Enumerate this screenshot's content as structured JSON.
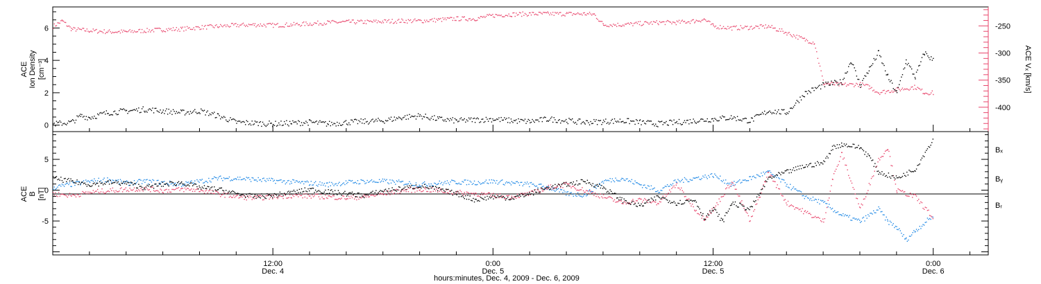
{
  "colors": {
    "black": "#000000",
    "pink": "#e8456b",
    "blue": "#1e88e5"
  },
  "xaxis": {
    "title": "hours:minutes, Dec.  4, 2009 - Dec.  6, 2009",
    "range_hours": [
      0,
      51
    ],
    "ticks": [
      {
        "hour": 12,
        "label": "12:00",
        "sublabel": "Dec. 4"
      },
      {
        "hour": 24,
        "label": "0:00",
        "sublabel": "Dec. 5"
      },
      {
        "hour": 36,
        "label": "12:00",
        "sublabel": "Dec. 5"
      },
      {
        "hour": 48,
        "label": "0:00",
        "sublabel": "Dec. 6"
      }
    ]
  },
  "chart_data": [
    {
      "type": "scatter",
      "panel": "top",
      "ylabel_left": [
        "ACE",
        "Ion Density",
        "[cm⁻³]"
      ],
      "ylabel_right": "ACE Vₓ [km/s]",
      "ylim_left": [
        -0.4,
        7.3
      ],
      "ylim_right": [
        -445,
        -215
      ],
      "left_ticks": [
        0,
        2,
        4,
        6
      ],
      "right_ticks": [
        -250,
        -300,
        -350,
        -400
      ],
      "series": [
        {
          "axis": "left",
          "color": "black",
          "points": [
            [
              0,
              0.1
            ],
            [
              1,
              0.2
            ],
            [
              1.5,
              0.6
            ],
            [
              2,
              0.5
            ],
            [
              3,
              0.8
            ],
            [
              4,
              0.9
            ],
            [
              5,
              1.0
            ],
            [
              6,
              0.9
            ],
            [
              7,
              0.8
            ],
            [
              8,
              0.9
            ],
            [
              9,
              0.6
            ],
            [
              10,
              0.2
            ],
            [
              11,
              0.15
            ],
            [
              12,
              0.1
            ],
            [
              13,
              0.15
            ],
            [
              14,
              0.2
            ],
            [
              15,
              0.1
            ],
            [
              16,
              0.2
            ],
            [
              17,
              0.25
            ],
            [
              18,
              0.3
            ],
            [
              19,
              0.5
            ],
            [
              20,
              0.6
            ],
            [
              21,
              0.4
            ],
            [
              22,
              0.3
            ],
            [
              23,
              0.35
            ],
            [
              24,
              0.4
            ],
            [
              25,
              0.3
            ],
            [
              26,
              0.25
            ],
            [
              27,
              0.4
            ],
            [
              28,
              0.3
            ],
            [
              29,
              0.2
            ],
            [
              30,
              0.25
            ],
            [
              31,
              0.3
            ],
            [
              32,
              0.2
            ],
            [
              33,
              0.1
            ],
            [
              34,
              0.2
            ],
            [
              35,
              0.3
            ],
            [
              36,
              0.4
            ],
            [
              37,
              0.5
            ],
            [
              38,
              0.3
            ],
            [
              39,
              0.9
            ],
            [
              40,
              0.8
            ],
            [
              41,
              2.0
            ],
            [
              42,
              2.5
            ],
            [
              43,
              2.7
            ],
            [
              43.5,
              4.0
            ],
            [
              44,
              2.5
            ],
            [
              44.5,
              3.5
            ],
            [
              45,
              4.5
            ],
            [
              45.5,
              3.0
            ],
            [
              46,
              2.0
            ],
            [
              46.5,
              4.0
            ],
            [
              47,
              3.0
            ],
            [
              47.5,
              4.5
            ],
            [
              48,
              4.0
            ]
          ]
        },
        {
          "axis": "right",
          "color": "pink",
          "points": [
            [
              0,
              -250
            ],
            [
              0.5,
              -240
            ],
            [
              1,
              -255
            ],
            [
              2,
              -258
            ],
            [
              3,
              -260
            ],
            [
              4,
              -260
            ],
            [
              5,
              -258
            ],
            [
              6,
              -256
            ],
            [
              7,
              -255
            ],
            [
              8,
              -252
            ],
            [
              9,
              -250
            ],
            [
              10,
              -248
            ],
            [
              11,
              -247
            ],
            [
              12,
              -248
            ],
            [
              13,
              -247
            ],
            [
              14,
              -245
            ],
            [
              15,
              -243
            ],
            [
              16,
              -242
            ],
            [
              17,
              -242
            ],
            [
              18,
              -241
            ],
            [
              19,
              -240
            ],
            [
              20,
              -240
            ],
            [
              21,
              -238
            ],
            [
              22,
              -236
            ],
            [
              23,
              -236
            ],
            [
              24,
              -230
            ],
            [
              25,
              -228
            ],
            [
              26,
              -227
            ],
            [
              27,
              -227
            ],
            [
              28,
              -227
            ],
            [
              29,
              -227
            ],
            [
              29.5,
              -228
            ],
            [
              30,
              -247
            ],
            [
              31,
              -247
            ],
            [
              32,
              -245
            ],
            [
              33,
              -243
            ],
            [
              34,
              -243
            ],
            [
              35,
              -240
            ],
            [
              35.5,
              -237
            ],
            [
              36,
              -250
            ],
            [
              37,
              -253
            ],
            [
              38,
              -252
            ],
            [
              39,
              -250
            ],
            [
              40,
              -262
            ],
            [
              41,
              -275
            ],
            [
              41.5,
              -280
            ],
            [
              42,
              -355
            ],
            [
              43,
              -358
            ],
            [
              44,
              -357
            ],
            [
              44.5,
              -362
            ],
            [
              45,
              -372
            ],
            [
              46,
              -367
            ],
            [
              47,
              -362
            ],
            [
              47.5,
              -372
            ],
            [
              48,
              -373
            ]
          ]
        }
      ]
    },
    {
      "type": "scatter",
      "panel": "bottom",
      "ylabel_left": [
        "ACE",
        "B",
        "[nT]"
      ],
      "ylim": [
        -10.5,
        9.5
      ],
      "left_ticks": [
        5,
        0,
        -5
      ],
      "series": [
        {
          "name": "Bₓ",
          "color": "black",
          "points": [
            [
              0,
              2.0
            ],
            [
              1,
              1.5
            ],
            [
              2,
              1.0
            ],
            [
              3,
              1.3
            ],
            [
              4,
              1.2
            ],
            [
              5,
              0.5
            ],
            [
              6,
              1.0
            ],
            [
              7,
              1.3
            ],
            [
              8,
              0.5
            ],
            [
              9,
              0.2
            ],
            [
              10,
              -0.5
            ],
            [
              11,
              -1.0
            ],
            [
              12,
              -0.8
            ],
            [
              13,
              -0.3
            ],
            [
              14,
              0.2
            ],
            [
              15,
              -0.2
            ],
            [
              16,
              -0.5
            ],
            [
              17,
              -0.8
            ],
            [
              18,
              0.0
            ],
            [
              19,
              0.3
            ],
            [
              20,
              0.8
            ],
            [
              21,
              0.2
            ],
            [
              22,
              -0.5
            ],
            [
              23,
              -1.5
            ],
            [
              24,
              -1.0
            ],
            [
              25,
              -1.2
            ],
            [
              26,
              -0.5
            ],
            [
              27,
              0.5
            ],
            [
              28,
              1.0
            ],
            [
              29,
              1.5
            ],
            [
              30,
              0.5
            ],
            [
              31,
              -1.5
            ],
            [
              32,
              -2.5
            ],
            [
              33,
              -1.0
            ],
            [
              34,
              -2.0
            ],
            [
              35,
              -1.5
            ],
            [
              35.5,
              -4.5
            ],
            [
              36,
              -3.0
            ],
            [
              36.5,
              -5.0
            ],
            [
              37,
              -2.0
            ],
            [
              38,
              -3.0
            ],
            [
              39,
              2.0
            ],
            [
              40,
              3.0
            ],
            [
              41,
              4.0
            ],
            [
              42,
              4.5
            ],
            [
              42.5,
              7.0
            ],
            [
              43,
              7.5
            ],
            [
              44,
              7.0
            ],
            [
              44.5,
              5.5
            ],
            [
              45,
              3.0
            ],
            [
              46,
              2.0
            ],
            [
              47,
              3.5
            ],
            [
              48,
              8.5
            ]
          ]
        },
        {
          "name": "Bᵧ",
          "color": "blue",
          "points": [
            [
              0,
              0.5
            ],
            [
              1,
              1.0
            ],
            [
              2,
              1.5
            ],
            [
              3,
              1.8
            ],
            [
              4,
              1.2
            ],
            [
              5,
              1.5
            ],
            [
              6,
              1.3
            ],
            [
              7,
              1.0
            ],
            [
              8,
              1.5
            ],
            [
              9,
              2.0
            ],
            [
              10,
              2.0
            ],
            [
              11,
              1.8
            ],
            [
              12,
              1.6
            ],
            [
              13,
              1.4
            ],
            [
              14,
              1.2
            ],
            [
              15,
              1.0
            ],
            [
              16,
              1.3
            ],
            [
              17,
              1.5
            ],
            [
              18,
              1.5
            ],
            [
              19,
              1.3
            ],
            [
              20,
              1.0
            ],
            [
              21,
              1.2
            ],
            [
              22,
              1.4
            ],
            [
              23,
              1.3
            ],
            [
              24,
              1.5
            ],
            [
              25,
              1.2
            ],
            [
              26,
              1.0
            ],
            [
              27,
              0.5
            ],
            [
              28,
              -0.5
            ],
            [
              29,
              -0.7
            ],
            [
              30,
              1.5
            ],
            [
              31,
              2.0
            ],
            [
              32,
              1.0
            ],
            [
              33,
              0.0
            ],
            [
              34,
              1.5
            ],
            [
              35,
              2.0
            ],
            [
              36,
              2.5
            ],
            [
              37,
              1.0
            ],
            [
              38,
              2.0
            ],
            [
              39,
              3.0
            ],
            [
              40,
              1.0
            ],
            [
              41,
              -1.0
            ],
            [
              42,
              -2.0
            ],
            [
              43,
              -4.0
            ],
            [
              44,
              -5.0
            ],
            [
              45,
              -3.0
            ],
            [
              45.5,
              -5.0
            ],
            [
              46,
              -6.0
            ],
            [
              46.5,
              -8.0
            ],
            [
              47,
              -6.5
            ],
            [
              48,
              -4.0
            ]
          ]
        },
        {
          "name": "Bᵣ",
          "color": "pink",
          "points": [
            [
              0,
              -0.5
            ],
            [
              1,
              -0.8
            ],
            [
              2,
              -0.3
            ],
            [
              3,
              0.0
            ],
            [
              4,
              0.2
            ],
            [
              5,
              0.3
            ],
            [
              6,
              0.0
            ],
            [
              7,
              0.2
            ],
            [
              8,
              0.1
            ],
            [
              9,
              -0.5
            ],
            [
              10,
              -1.0
            ],
            [
              11,
              -1.2
            ],
            [
              12,
              -1.0
            ],
            [
              13,
              -0.8
            ],
            [
              14,
              -0.9
            ],
            [
              15,
              -1.0
            ],
            [
              16,
              -1.2
            ],
            [
              17,
              -1.0
            ],
            [
              18,
              -0.5
            ],
            [
              19,
              0.0
            ],
            [
              20,
              0.2
            ],
            [
              21,
              0.0
            ],
            [
              22,
              -0.3
            ],
            [
              23,
              -0.5
            ],
            [
              24,
              -0.8
            ],
            [
              25,
              -1.0
            ],
            [
              26,
              -0.5
            ],
            [
              27,
              0.5
            ],
            [
              28,
              1.0
            ],
            [
              29,
              0.0
            ],
            [
              30,
              -1.0
            ],
            [
              31,
              -2.0
            ],
            [
              32,
              -1.5
            ],
            [
              33,
              -2.0
            ],
            [
              34,
              1.0
            ],
            [
              35,
              -3.0
            ],
            [
              35.5,
              -4.5
            ],
            [
              36,
              -3.0
            ],
            [
              37,
              1.5
            ],
            [
              38,
              -5.0
            ],
            [
              39,
              3.0
            ],
            [
              40,
              -2.0
            ],
            [
              41,
              -3.5
            ],
            [
              42,
              -5.0
            ],
            [
              42.5,
              2.0
            ],
            [
              43,
              6.0
            ],
            [
              44,
              -3.0
            ],
            [
              45,
              5.0
            ],
            [
              45.5,
              7.0
            ],
            [
              46,
              0.0
            ],
            [
              47,
              -1.0
            ],
            [
              48,
              -4.5
            ]
          ]
        }
      ]
    }
  ]
}
